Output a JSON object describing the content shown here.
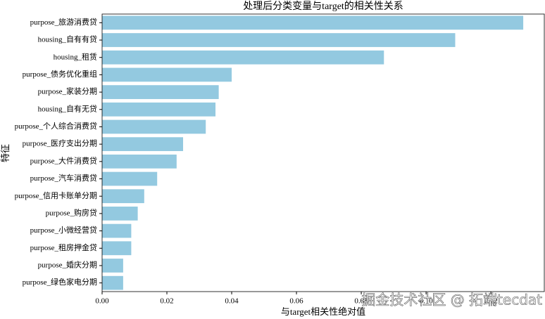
{
  "chart_data": {
    "type": "barh",
    "title": "处理后分类变量与target的相关性关系",
    "xlabel": "与target相关性绝对值",
    "ylabel": "特征",
    "watermark": "掘金技术社区 @ 拓端tecdat",
    "categories": [
      "purpose_旅游消费贷",
      "housing_自有有贷",
      "housing_租赁",
      "purpose_债务优化重组",
      "purpose_家装分期",
      "housing_自有无贷",
      "purpose_个人综合消费贷",
      "purpose_医疗支出分期",
      "purpose_大件消费贷",
      "purpose_汽车消费贷",
      "purpose_信用卡账单分期",
      "purpose_购房贷",
      "purpose_小微经营贷",
      "purpose_租房押金贷",
      "purpose_婚庆分期",
      "purpose_绿色家电分期"
    ],
    "values": [
      0.13,
      0.109,
      0.087,
      0.04,
      0.036,
      0.035,
      0.032,
      0.025,
      0.023,
      0.017,
      0.013,
      0.011,
      0.009,
      0.009,
      0.0065,
      0.0065
    ],
    "color": "#93c9e0",
    "xlim": [
      0,
      0.1365
    ],
    "xticks": [
      {
        "value": 0,
        "label": "0.00"
      },
      {
        "value": 0.02,
        "label": "0.02"
      },
      {
        "value": 0.04,
        "label": "0.04"
      },
      {
        "value": 0.06,
        "label": "0.06"
      },
      {
        "value": 0.08,
        "label": "0.08"
      },
      {
        "value": 0.1,
        "label": "0.10"
      },
      {
        "value": 0.12,
        "label": "0.12"
      }
    ]
  }
}
